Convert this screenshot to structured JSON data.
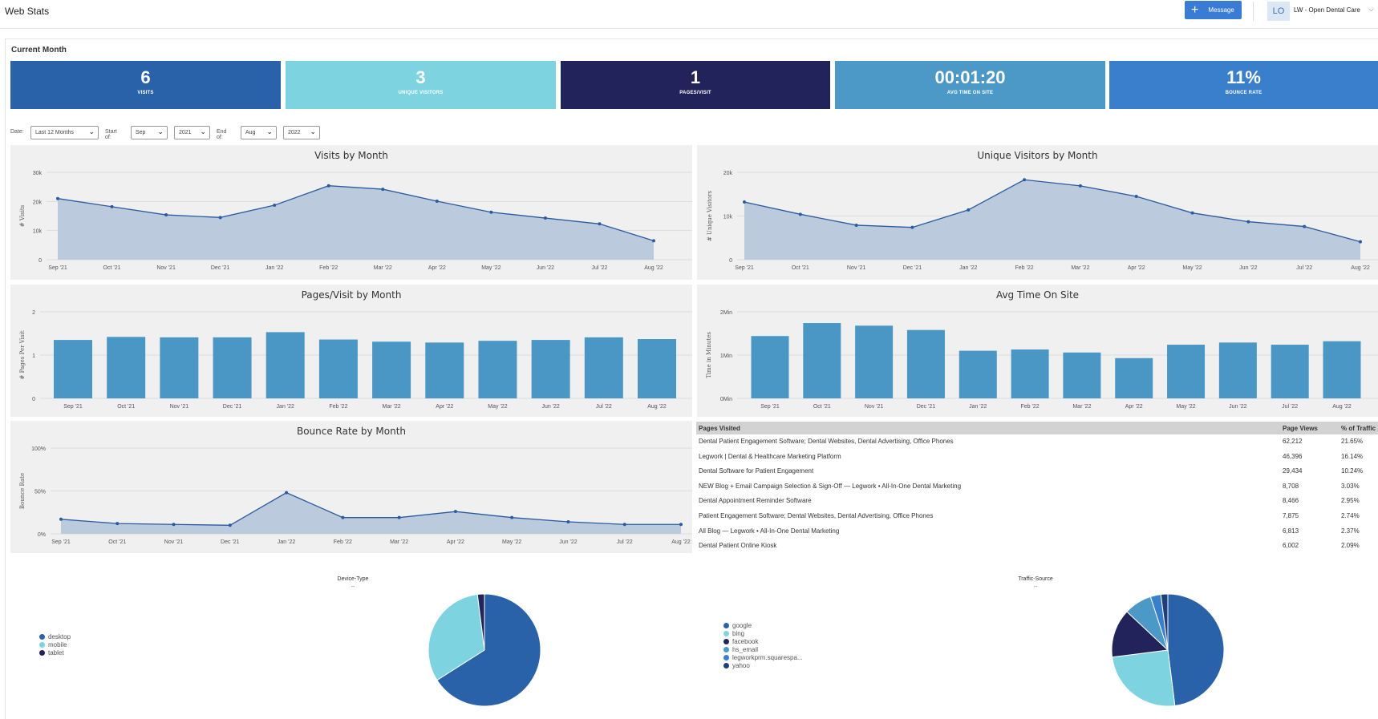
{
  "header": {
    "title": "Web Stats",
    "message_label": "Message",
    "avatar": "LO",
    "account": "LW - Open Dental Care"
  },
  "section_title": "Current Month",
  "kpis": [
    {
      "value": "6",
      "label": "VISITS",
      "color": "#2962a8"
    },
    {
      "value": "3",
      "label": "UNIQUE VISITORS",
      "color": "#7dd3df"
    },
    {
      "value": "1",
      "label": "PAGES/VISIT",
      "color": "#23235b"
    },
    {
      "value": "00:01:20",
      "label": "AVG TIME ON SITE",
      "color": "#4c98c6"
    },
    {
      "value": "11%",
      "label": "BOUNCE RATE",
      "color": "#3a7fcb"
    }
  ],
  "filters": {
    "date_label": "Date:",
    "date_value": "Last 12 Months",
    "start_label": "Start of:",
    "start_month": "Sep",
    "start_year": "2021",
    "end_label": "End of:",
    "end_month": "Aug",
    "end_year": "2022"
  },
  "chart_data": [
    {
      "id": "visits",
      "type": "area",
      "title": "Visits by Month",
      "ylabel": "# Visits",
      "categories": [
        "Sep '21",
        "Oct '21",
        "Nov '21",
        "Dec '21",
        "Jan '22",
        "Feb '22",
        "Mar '22",
        "Apr '22",
        "May '22",
        "Jun '22",
        "Jul '22",
        "Aug '22"
      ],
      "values": [
        21000,
        18200,
        15400,
        14500,
        18700,
        25400,
        24200,
        20100,
        16300,
        14300,
        12300,
        6500
      ],
      "ylim": [
        0,
        30000
      ],
      "yticks": [
        0,
        10000,
        20000,
        30000
      ],
      "yticklabels": [
        "0",
        "10k",
        "20k",
        "30k"
      ]
    },
    {
      "id": "unique",
      "type": "area",
      "title": "Unique Visitors by Month",
      "ylabel": "# Unique Visitors",
      "categories": [
        "Sep '21",
        "Oct '21",
        "Nov '21",
        "Dec '21",
        "Jan '22",
        "Feb '22",
        "Mar '22",
        "Apr '22",
        "May '22",
        "Jun '22",
        "Jul '22",
        "Aug '22"
      ],
      "values": [
        13200,
        10400,
        7900,
        7400,
        11400,
        18300,
        16900,
        14500,
        10700,
        8700,
        7600,
        4100
      ],
      "ylim": [
        0,
        20000
      ],
      "yticks": [
        0,
        10000,
        20000
      ],
      "yticklabels": [
        "0",
        "10k",
        "20k"
      ]
    },
    {
      "id": "pages",
      "type": "bar",
      "title": "Pages/Visit by Month",
      "ylabel": "# Pages Per Visit",
      "categories": [
        "Sep '21",
        "Oct '21",
        "Nov '21",
        "Dec '21",
        "Jan '22",
        "Feb '22",
        "Mar '22",
        "Apr '22",
        "May '22",
        "Jun '22",
        "Jul '22",
        "Aug '22"
      ],
      "values": [
        1.35,
        1.42,
        1.41,
        1.41,
        1.53,
        1.36,
        1.31,
        1.29,
        1.33,
        1.35,
        1.41,
        1.37
      ],
      "ylim": [
        0,
        2
      ],
      "yticks": [
        0,
        1,
        2
      ],
      "yticklabels": [
        "0",
        "1",
        "2"
      ]
    },
    {
      "id": "time",
      "type": "bar",
      "title": "Avg Time On Site",
      "ylabel": "Time in Minutes",
      "categories": [
        "Sep '21",
        "Oct '21",
        "Nov '21",
        "Dec '21",
        "Jan '22",
        "Feb '22",
        "Mar '22",
        "Apr '22",
        "May '22",
        "Jun '22",
        "Jul '22",
        "Aug '22"
      ],
      "values": [
        1.44,
        1.74,
        1.68,
        1.58,
        1.1,
        1.13,
        1.06,
        0.93,
        1.24,
        1.29,
        1.24,
        1.32
      ],
      "ylim": [
        0,
        2
      ],
      "yticks": [
        0,
        1,
        2
      ],
      "yticklabels": [
        "0Min",
        "1Min",
        "2Min"
      ]
    },
    {
      "id": "bounce",
      "type": "area",
      "title": "Bounce Rate by Month",
      "ylabel": "Bounce Rate",
      "categories": [
        "Sep '21",
        "Oct '21",
        "Nov '21",
        "Dec '21",
        "Jan '22",
        "Feb '22",
        "Mar '22",
        "Apr '22",
        "May '22",
        "Jun '22",
        "Jul '22",
        "Aug '22"
      ],
      "values": [
        17,
        12,
        11,
        10,
        48,
        19,
        19,
        26,
        19,
        14,
        11,
        11
      ],
      "ylim": [
        0,
        100
      ],
      "yticks": [
        0,
        50,
        100
      ],
      "yticklabels": [
        "0%",
        "50%",
        "100%"
      ]
    },
    {
      "id": "device",
      "type": "pie",
      "title": "Device-Type",
      "subtitle": "--",
      "legend": "left",
      "labels": [
        "desktop",
        "mobile",
        "tablet"
      ],
      "values": [
        66,
        32,
        2
      ],
      "colors": [
        "#2962a8",
        "#7dd3df",
        "#23235b"
      ]
    },
    {
      "id": "traffic",
      "type": "pie",
      "title": "Traffic-Source",
      "subtitle": "--",
      "legend": "left",
      "labels": [
        "google",
        "bing",
        "facebook",
        "hs_email",
        "legworkprm.squarespa...",
        "yahoo"
      ],
      "values": [
        48,
        25,
        14,
        8,
        3,
        2
      ],
      "colors": [
        "#2962a8",
        "#7dd3df",
        "#23235b",
        "#4c98c6",
        "#3a7fcb",
        "#1f3f7a"
      ]
    }
  ],
  "pages_table": {
    "headers": [
      "Pages Visited",
      "Page Views",
      "% of Traffic"
    ],
    "rows": [
      [
        "Dental Patient Engagement Software; Dental Websites, Dental Advertising, Office Phones",
        "62,212",
        "21.65%"
      ],
      [
        "Legwork | Dental & Healthcare Marketing Platform",
        "46,396",
        "16.14%"
      ],
      [
        "Dental Software for Patient Engagement",
        "29,434",
        "10.24%"
      ],
      [
        "NEW Blog + Email Campaign Selection & Sign-Off — Legwork • All-In-One Dental Marketing",
        "8,708",
        "3.03%"
      ],
      [
        "Dental Appointment Reminder Software",
        "8,466",
        "2.95%"
      ],
      [
        "Patient Engagement Software; Dental Websites, Dental Advertising, Office Phones",
        "7,875",
        "2.74%"
      ],
      [
        "All Blog — Legwork • All-In-One Dental Marketing",
        "6,813",
        "2.37%"
      ],
      [
        "Dental Patient Online Kiosk",
        "6,002",
        "2.09%"
      ]
    ]
  }
}
